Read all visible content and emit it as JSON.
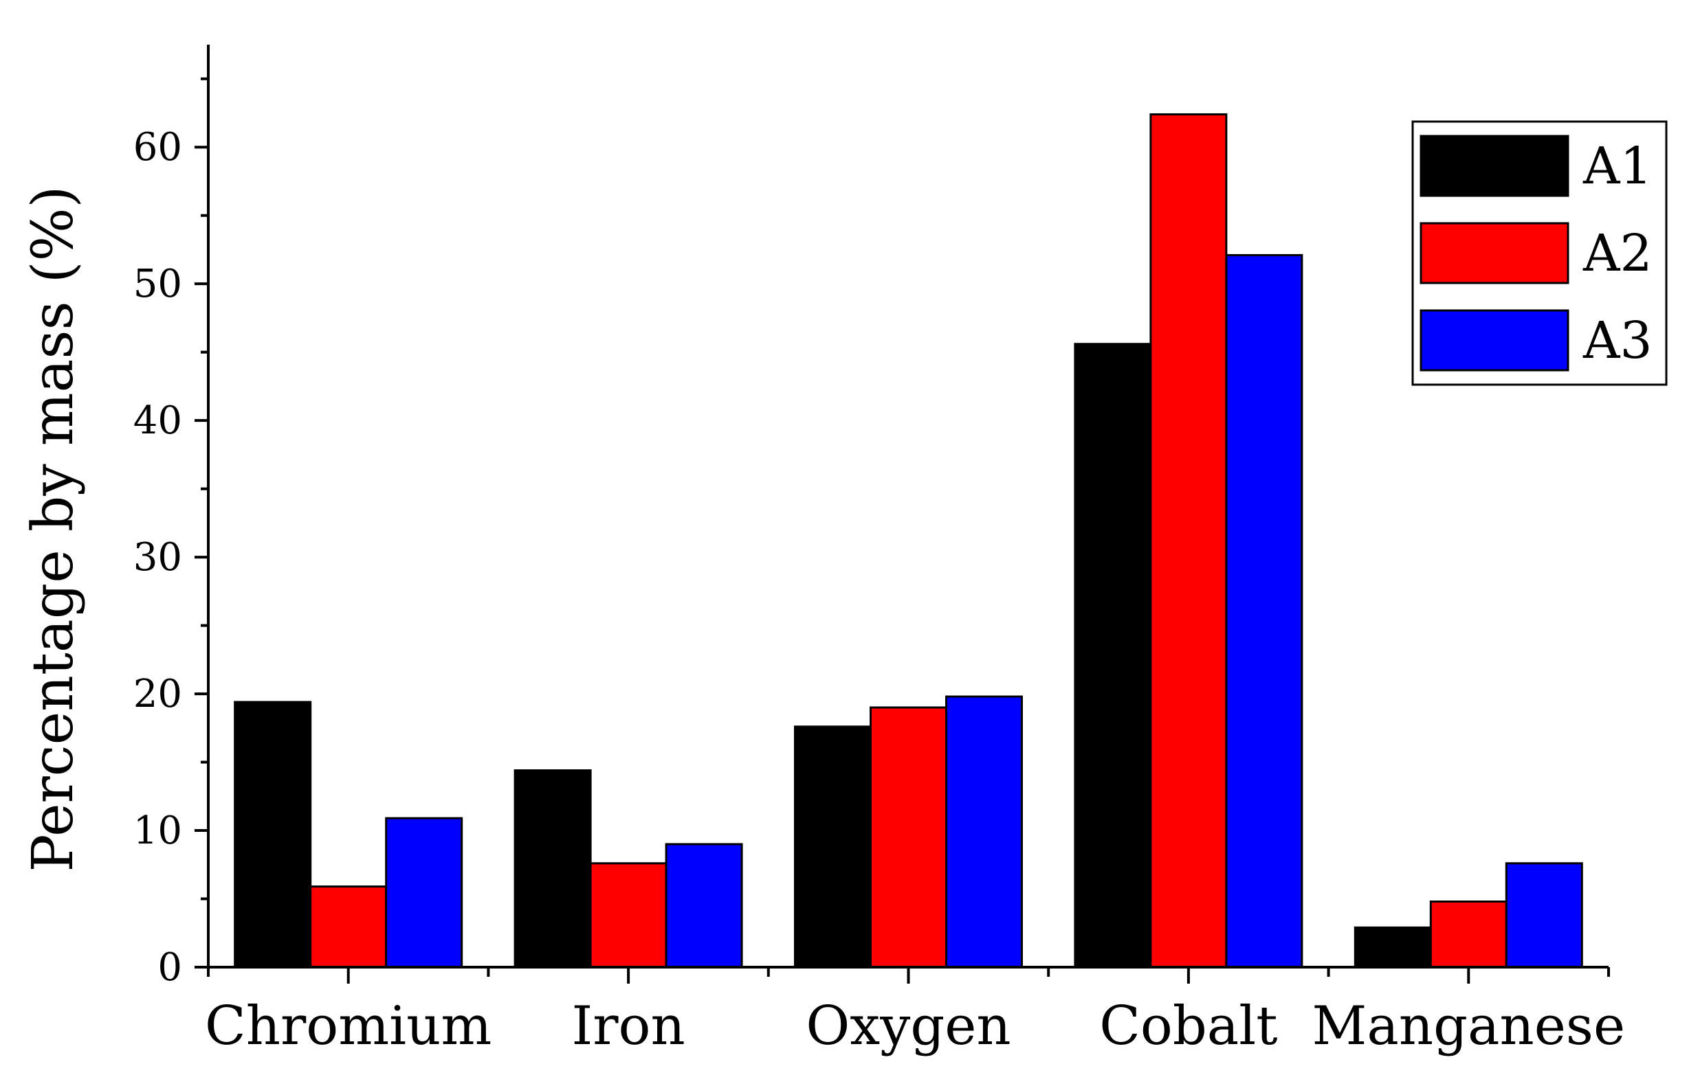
{
  "chart_data": {
    "type": "bar",
    "title": "",
    "xlabel": "",
    "ylabel": "Percentage by mass (%)",
    "categories": [
      "Chromium",
      "Iron",
      "Oxygen",
      "Cobalt",
      "Manganese"
    ],
    "series": [
      {
        "name": "A1",
        "color": "#000000",
        "values": [
          19.4,
          14.4,
          17.6,
          45.6,
          2.9
        ]
      },
      {
        "name": "A2",
        "color": "#ff0000",
        "values": [
          5.9,
          7.6,
          19.0,
          62.4,
          4.8
        ]
      },
      {
        "name": "A3",
        "color": "#0000ff",
        "values": [
          10.9,
          9.0,
          19.8,
          52.1,
          7.6
        ]
      }
    ],
    "ylim": [
      0,
      67.5
    ],
    "yticks": [
      0,
      10,
      20,
      30,
      40,
      50,
      60
    ],
    "grid": false,
    "legend": "top-right"
  }
}
